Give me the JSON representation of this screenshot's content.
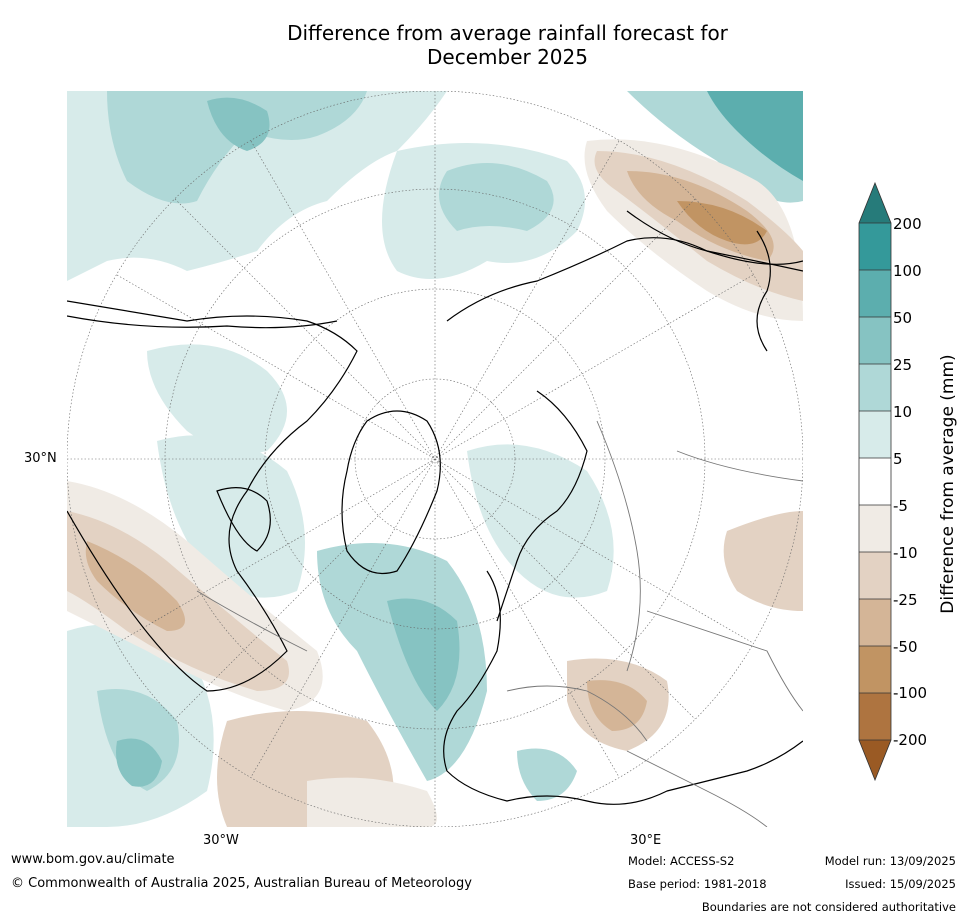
{
  "title_line1": "Difference from average rainfall forecast for",
  "title_line2": "December 2025",
  "axis_labels": {
    "lat_30N": "30°N",
    "lon_30W": "30°W",
    "lon_30E": "30°E"
  },
  "legend": {
    "title": "Difference from average (mm)",
    "levels": [
      "200",
      "100",
      "50",
      "25",
      "10",
      "5",
      "-5",
      "-10",
      "-25",
      "-50",
      "-100",
      "-200"
    ],
    "colors": {
      "gt200": "#267b7a",
      "b100_200": "#34999a",
      "b50_100": "#5caeae",
      "b25_50": "#86c3c2",
      "b10_25": "#afd8d7",
      "b5_10": "#d7ebea",
      "neutral": "#ffffff",
      "bm5_m10": "#f0ebe5",
      "bm10_m25": "#e3d2c3",
      "bm25_m50": "#d4b597",
      "bm50_m100": "#c19463",
      "bm100_m200": "#ae7440",
      "lt_m200": "#9a5a24"
    }
  },
  "footer": {
    "website": "www.bom.gov.au/climate",
    "copyright": "© Commonwealth of Australia 2025, Australian Bureau of Meteorology",
    "model": "Model: ACCESS-S2",
    "base_period": "Base period: 1981-2018",
    "model_run": "Model run: 13/09/2025",
    "issued": "Issued: 15/09/2025",
    "disclaimer": "Boundaries are not considered authoritative"
  }
}
